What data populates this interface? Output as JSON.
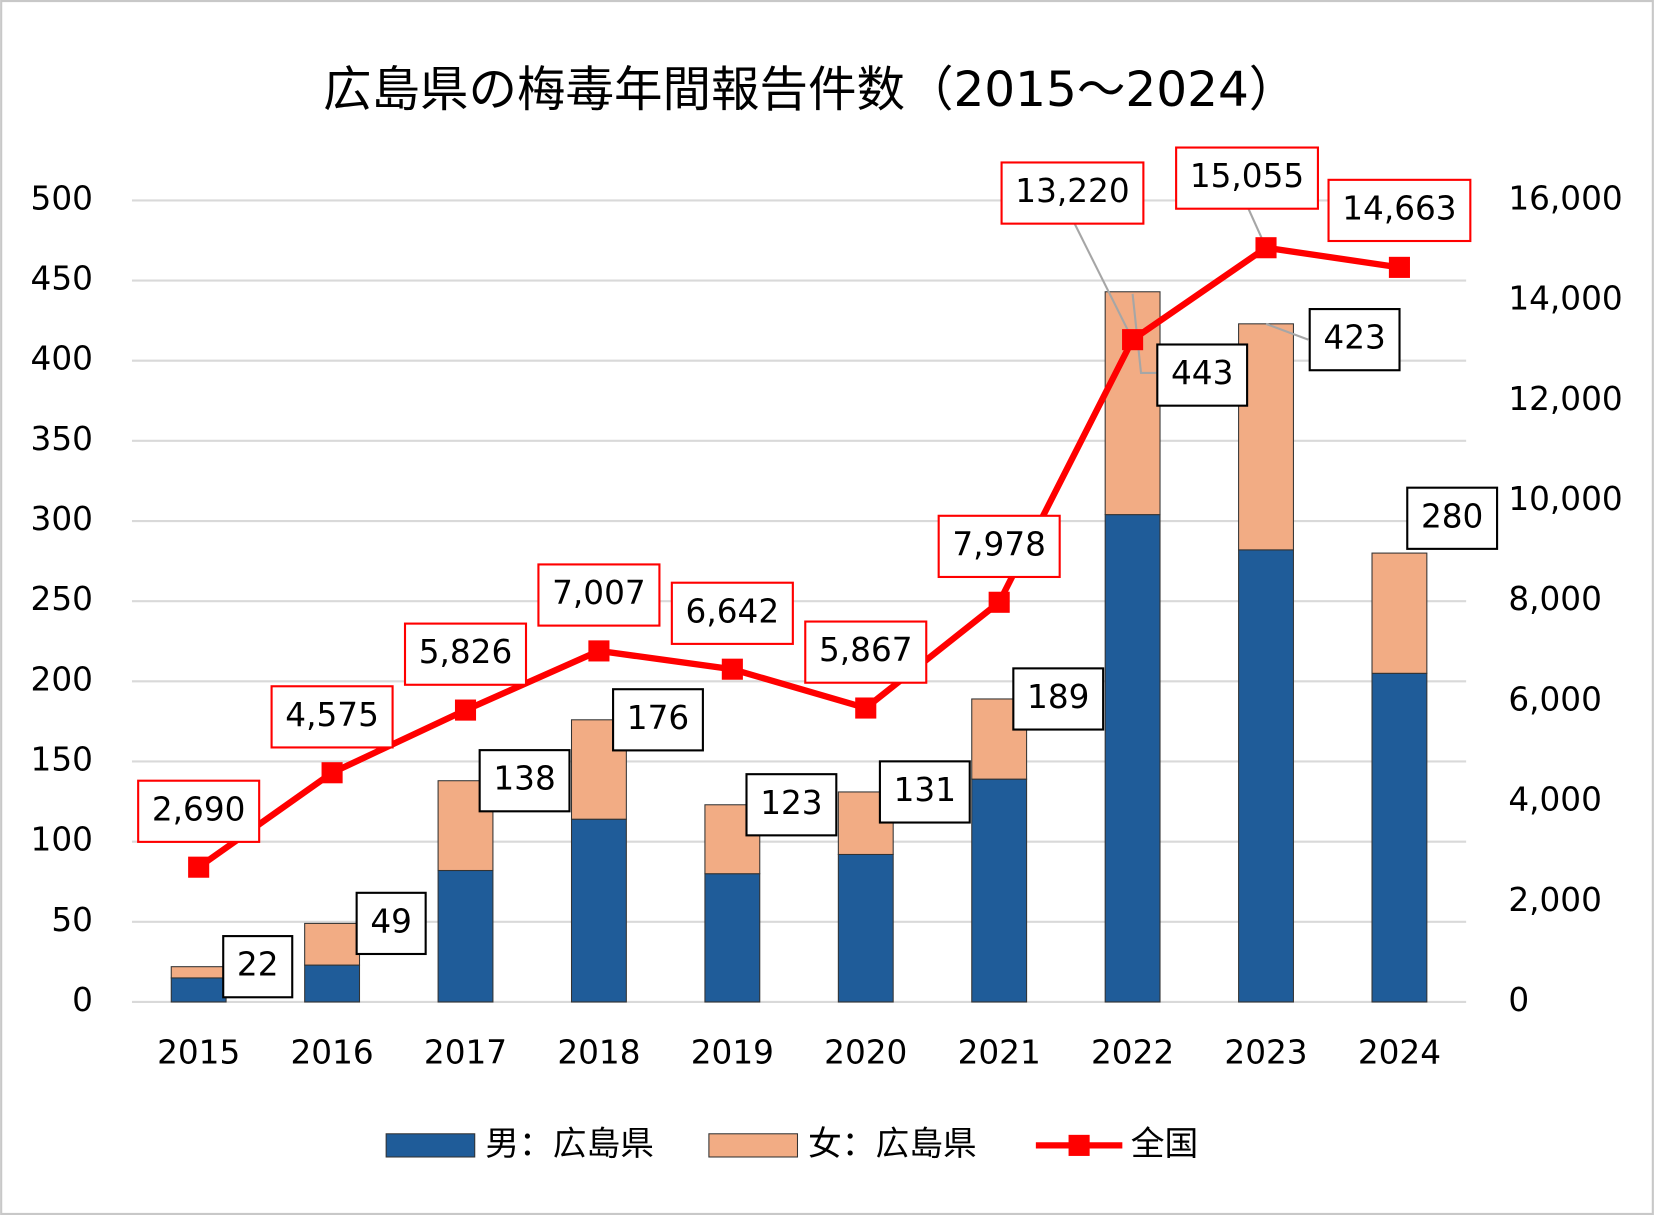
{
  "chart_data": {
    "type": "bar",
    "stacked": true,
    "title": "広島県の梅毒年間報告件数（2015～2024）",
    "categories": [
      "2015",
      "2016",
      "2017",
      "2018",
      "2019",
      "2020",
      "2021",
      "2022",
      "2023",
      "2024"
    ],
    "series": [
      {
        "name": "男：広島県",
        "type": "bar",
        "color": "#1f5c99",
        "values": [
          15,
          23,
          82,
          114,
          80,
          92,
          139,
          304,
          282,
          205
        ]
      },
      {
        "name": "女：広島県",
        "type": "bar",
        "color": "#f2ac84",
        "values": [
          7,
          26,
          56,
          62,
          43,
          39,
          50,
          139,
          141,
          75
        ]
      },
      {
        "name": "全国",
        "type": "line",
        "axis": "y2",
        "color": "#ff0000",
        "values": [
          2690,
          4575,
          5826,
          7007,
          6642,
          5867,
          7978,
          13220,
          15055,
          14663
        ],
        "value_labels": [
          "2,690",
          "4,575",
          "5,826",
          "7,007",
          "6,642",
          "5,867",
          "7,978",
          "13,220",
          "15,055",
          "14,663"
        ]
      }
    ],
    "totals": [
      22,
      49,
      138,
      176,
      123,
      131,
      189,
      443,
      423,
      280
    ],
    "ylim": [
      0,
      500
    ],
    "yticks": [
      0,
      50,
      100,
      150,
      200,
      250,
      300,
      350,
      400,
      450,
      500
    ],
    "y2lim": [
      0,
      16000
    ],
    "y2ticks": [
      0,
      {
        "value": 2000,
        "label": "2,000"
      },
      {
        "value": 4000,
        "label": "4,000"
      },
      {
        "value": 6000,
        "label": "6,000"
      },
      {
        "value": 8000,
        "label": "8,000"
      },
      {
        "value": 10000,
        "label": "10,000"
      },
      {
        "value": 12000,
        "label": "12,000"
      },
      {
        "value": 14000,
        "label": "14,000"
      },
      {
        "value": 16000,
        "label": "16,000"
      }
    ],
    "grid": true,
    "legend": "bottom"
  }
}
